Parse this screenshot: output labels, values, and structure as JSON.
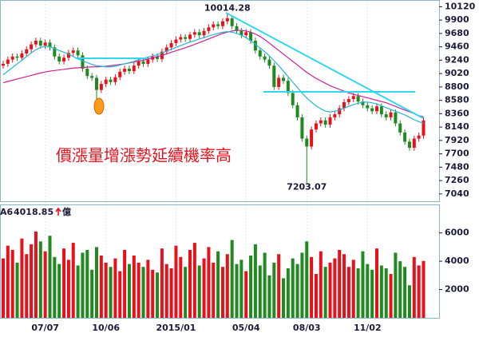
{
  "chart_data": {
    "type": "candlestick",
    "annotation": "價漲量增漲勢延續機率高",
    "categories": [
      null,
      null,
      null,
      null,
      null,
      null,
      null,
      null,
      null,
      "07/07",
      null,
      null,
      null,
      null,
      null,
      null,
      null,
      null,
      null,
      null,
      null,
      null,
      "10/06",
      null,
      null,
      null,
      null,
      null,
      null,
      null,
      null,
      null,
      null,
      null,
      null,
      null,
      null,
      "2015/01",
      null,
      null,
      null,
      null,
      null,
      null,
      null,
      null,
      null,
      null,
      null,
      null,
      null,
      null,
      "05/04",
      null,
      null,
      null,
      null,
      null,
      null,
      null,
      null,
      null,
      null,
      null,
      null,
      "08/03",
      null,
      null,
      null,
      null,
      null,
      null,
      null,
      null,
      null,
      null,
      null,
      null,
      "11/02",
      null,
      null,
      null,
      null,
      null,
      null,
      null,
      null,
      null,
      null,
      null,
      null
    ],
    "open": [
      9150,
      9180,
      9250,
      9300,
      9280,
      9350,
      9420,
      9500,
      9560,
      9480,
      9530,
      9450,
      9300,
      9220,
      9280,
      9360,
      9400,
      9320,
      9100,
      8980,
      8950,
      8750,
      8850,
      8920,
      8880,
      8960,
      9050,
      9100,
      9060,
      9150,
      9220,
      9180,
      9250,
      9300,
      9260,
      9380,
      9450,
      9520,
      9580,
      9620,
      9590,
      9660,
      9700,
      9650,
      9720,
      9780,
      9830,
      9800,
      9880,
      9930,
      9800,
      9720,
      9650,
      9700,
      9560,
      9400,
      9300,
      9250,
      9150,
      8800,
      8950,
      8900,
      8700,
      8500,
      8300,
      7950,
      7820,
      8100,
      8200,
      8250,
      8180,
      8300,
      8350,
      8450,
      8550,
      8600,
      8650,
      8560,
      8500,
      8450,
      8400,
      8480,
      8350,
      8300,
      8380,
      8200,
      8050,
      7900,
      7800,
      7950,
      8000
    ],
    "high": [
      9230,
      9300,
      9350,
      9350,
      9400,
      9470,
      9550,
      9610,
      9610,
      9580,
      9580,
      9500,
      9350,
      9330,
      9410,
      9450,
      9450,
      9370,
      9150,
      9030,
      9000,
      8900,
      8970,
      8970,
      9010,
      9100,
      9150,
      9150,
      9200,
      9270,
      9270,
      9300,
      9350,
      9350,
      9430,
      9500,
      9570,
      9630,
      9670,
      9670,
      9710,
      9750,
      9750,
      9770,
      9830,
      9880,
      9880,
      9930,
      10014.28,
      9980,
      9850,
      9770,
      9750,
      9750,
      9610,
      9450,
      9350,
      9300,
      9200,
      9000,
      9000,
      8950,
      8750,
      8550,
      8350,
      8000,
      8150,
      8250,
      8300,
      8300,
      8350,
      8400,
      8500,
      8600,
      8650,
      8700,
      8700,
      8610,
      8550,
      8500,
      8530,
      8530,
      8400,
      8430,
      8430,
      8250,
      8100,
      7950,
      8000,
      8050,
      8300
    ],
    "low": [
      9100,
      9130,
      9200,
      9230,
      9230,
      9300,
      9370,
      9450,
      9430,
      9430,
      9400,
      9250,
      9170,
      9170,
      9230,
      9310,
      9270,
      9050,
      8930,
      8900,
      8560,
      8700,
      8800,
      8830,
      8830,
      8910,
      9000,
      9010,
      9010,
      9100,
      9130,
      9130,
      9200,
      9210,
      9210,
      9330,
      9400,
      9470,
      9530,
      9540,
      9540,
      9610,
      9600,
      9600,
      9670,
      9730,
      9750,
      9750,
      9830,
      9750,
      9670,
      9600,
      9600,
      9510,
      9350,
      9250,
      9200,
      9100,
      8750,
      8750,
      8850,
      8650,
      8450,
      8250,
      7900,
      7203.07,
      7770,
      8050,
      8150,
      8130,
      8130,
      8250,
      8300,
      8400,
      8500,
      8550,
      8510,
      8450,
      8400,
      8350,
      8350,
      8300,
      8250,
      8250,
      8150,
      8000,
      7850,
      7750,
      7750,
      7900,
      7950
    ],
    "close": [
      9180,
      9250,
      9300,
      9280,
      9350,
      9420,
      9500,
      9560,
      9480,
      9530,
      9450,
      9300,
      9220,
      9280,
      9360,
      9400,
      9320,
      9100,
      8980,
      8950,
      8750,
      8850,
      8920,
      8880,
      8960,
      9050,
      9100,
      9060,
      9150,
      9220,
      9180,
      9250,
      9300,
      9260,
      9380,
      9450,
      9520,
      9580,
      9620,
      9590,
      9660,
      9700,
      9650,
      9720,
      9780,
      9830,
      9800,
      9880,
      9930,
      9800,
      9720,
      9650,
      9700,
      9560,
      9400,
      9300,
      9250,
      9150,
      8800,
      8950,
      8900,
      8700,
      8500,
      8300,
      7950,
      7820,
      8100,
      8200,
      8250,
      8180,
      8300,
      8350,
      8450,
      8550,
      8600,
      8650,
      8560,
      8500,
      8450,
      8400,
      8480,
      8350,
      8300,
      8380,
      8200,
      8050,
      7900,
      7800,
      7950,
      8000,
      8250
    ],
    "up_color": "#e8101a",
    "down_color": "#1f8a1f",
    "ma_lines": [
      {
        "color": "#cc2299",
        "values": [
          8870,
          8890,
          8910,
          8930,
          8950,
          8970,
          8990,
          9010,
          9030,
          9045,
          9060,
          9070,
          9080,
          9090,
          9100,
          9110,
          9115,
          9120,
          9125,
          9130,
          9130,
          9135,
          9140,
          9150,
          9160,
          9170,
          9180,
          9195,
          9210,
          9225,
          9240,
          9260,
          9280,
          9300,
          9320,
          9345,
          9370,
          9395,
          9420,
          9445,
          9470,
          9500,
          9530,
          9560,
          9590,
          9620,
          9650,
          9680,
          9700,
          9720,
          9730,
          9730,
          9720,
          9700,
          9670,
          9630,
          9580,
          9520,
          9460,
          9400,
          9340,
          9280,
          9220,
          9160,
          9100,
          9040,
          8990,
          8940,
          8900,
          8860,
          8820,
          8790,
          8760,
          8730,
          8700,
          8680,
          8660,
          8640,
          8620,
          8600,
          8580,
          8560,
          8540,
          8510,
          8480,
          8450,
          8420,
          8390,
          8360,
          8330,
          8310
        ]
      },
      {
        "color": "#22b8d0",
        "values": [
          9000,
          9060,
          9120,
          9180,
          9240,
          9300,
          9360,
          9410,
          9450,
          9470,
          9460,
          9430,
          9400,
          9370,
          9340,
          9300,
          9260,
          9230,
          9200,
          9170,
          9150,
          9140,
          9130,
          9130,
          9140,
          9160,
          9180,
          9200,
          9220,
          9250,
          9270,
          9290,
          9310,
          9330,
          9360,
          9390,
          9420,
          9450,
          9480,
          9510,
          9540,
          9560,
          9590,
          9610,
          9640,
          9660,
          9680,
          9700,
          9710,
          9700,
          9680,
          9650,
          9610,
          9560,
          9500,
          9440,
          9380,
          9310,
          9230,
          9150,
          9060,
          8970,
          8880,
          8790,
          8700,
          8620,
          8550,
          8490,
          8440,
          8400,
          8390,
          8400,
          8420,
          8450,
          8480,
          8510,
          8530,
          8550,
          8550,
          8540,
          8520,
          8490,
          8460,
          8430,
          8400,
          8370,
          8340,
          8300,
          8260,
          8230,
          8200
        ]
      }
    ],
    "ylim": [
      6920,
      10230
    ],
    "yticks": [
      7040,
      7260,
      7480,
      7700,
      7920,
      8140,
      8360,
      8580,
      8800,
      9020,
      9240,
      9460,
      9680,
      9900,
      10120
    ],
    "volume_label": "A6",
    "volume_unit": "億",
    "volume": [
      4200,
      5100,
      4800,
      3900,
      5600,
      4500,
      5200,
      6100,
      5400,
      4700,
      5800,
      4300,
      3800,
      4900,
      4100,
      5300,
      3700,
      4600,
      4800,
      3400,
      5000,
      4400,
      3900,
      3600,
      4200,
      3300,
      4800,
      3800,
      4400,
      3900,
      3600,
      4100,
      3400,
      3200,
      4900,
      3800,
      3500,
      5100,
      4300,
      3600,
      4800,
      5300,
      3700,
      4200,
      5000,
      3900,
      4700,
      3600,
      4500,
      5500,
      3800,
      4100,
      3300,
      4400,
      5200,
      3700,
      4600,
      3000,
      3900,
      4500,
      2800,
      3500,
      4200,
      3800,
      4600,
      5400,
      4300,
      3100,
      4700,
      3600,
      3900,
      4200,
      4800,
      4500,
      3600,
      4100,
      3500,
      4700,
      3800,
      3400,
      4900,
      3700,
      3500,
      3100,
      4600,
      4000,
      3600,
      2300,
      4300,
      3700,
      4018.85
    ],
    "volume_ylim": [
      0,
      7900
    ],
    "volume_yticks": [
      2000,
      4000,
      6000
    ]
  }
}
